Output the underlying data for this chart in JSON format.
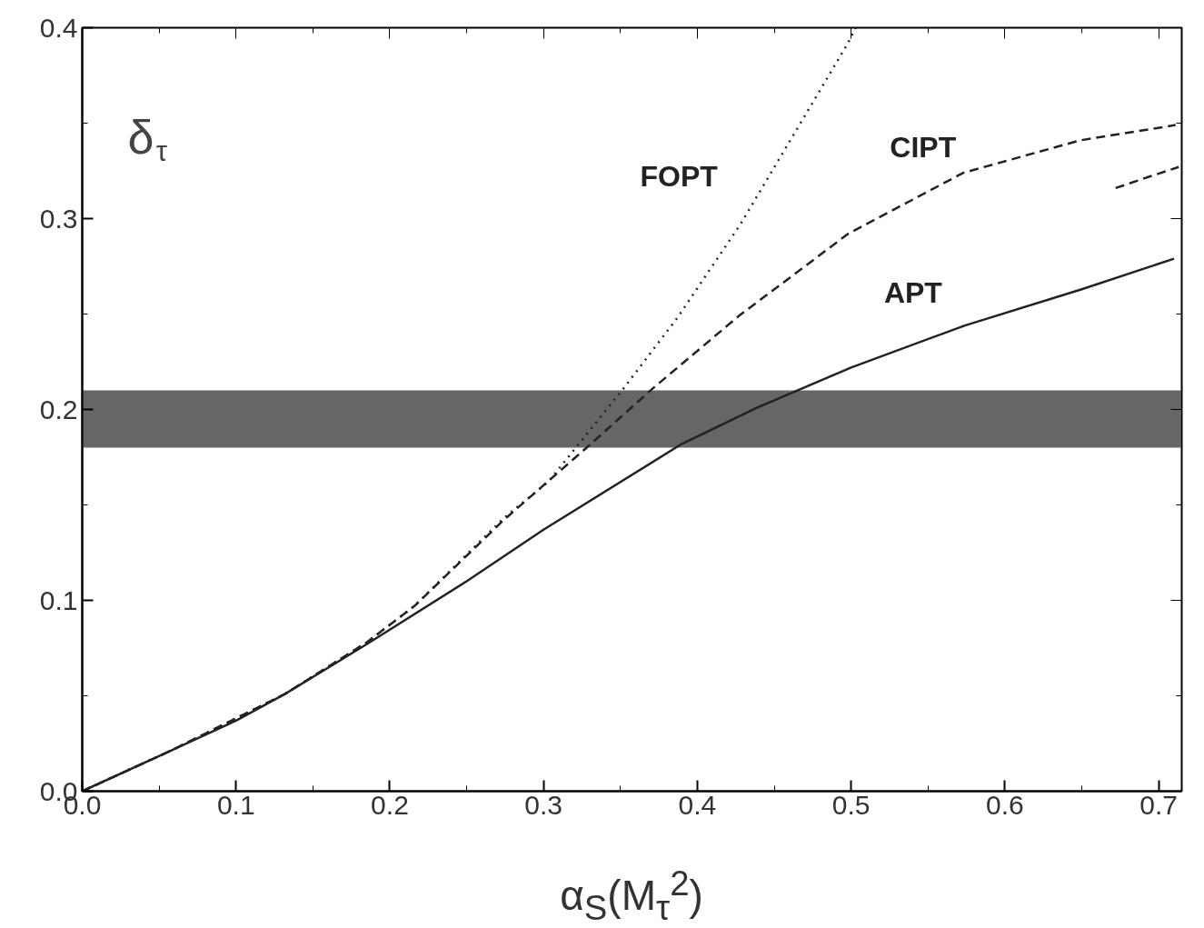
{
  "chart_data": {
    "type": "line",
    "xlabel": "α$_{S}$(M$_{τ}$$^{2}$)",
    "ylabel": "δ$_{τ}$",
    "xlim": [
      0,
      0.715
    ],
    "ylim": [
      0,
      0.4
    ],
    "xticks": [
      {
        "value": 0,
        "label": "0.0"
      },
      {
        "value": 0.1,
        "label": "0.1"
      },
      {
        "value": 0.2,
        "label": "0.2"
      },
      {
        "value": 0.3,
        "label": "0.3"
      },
      {
        "value": 0.4,
        "label": "0.4"
      },
      {
        "value": 0.5,
        "label": "0.5"
      },
      {
        "value": 0.6,
        "label": "0.6"
      },
      {
        "value": 0.7,
        "label": "0.7"
      }
    ],
    "yticks": [
      {
        "value": 0,
        "label": "0.0"
      },
      0.1,
      0.2,
      0.3,
      0.4
    ],
    "grid": false,
    "marker": "none",
    "series": [
      {
        "name": "FOPT",
        "color": "#222222",
        "line_style": "dotted",
        "x": [
          0,
          0.057,
          0.132,
          0.185,
          0.216,
          0.274,
          0.303,
          0.352,
          0.387,
          0.428,
          0.498,
          0.503
        ],
        "values": [
          0,
          0.021,
          0.051,
          0.078,
          0.097,
          0.143,
          0.162,
          0.211,
          0.248,
          0.297,
          0.392,
          0.4
        ]
      },
      {
        "name": "CIPT",
        "color": "#222222",
        "line_style": "dashed",
        "x": [
          0,
          0.057,
          0.132,
          0.185,
          0.216,
          0.274,
          0.328,
          0.371,
          0.427,
          0.498,
          0.573,
          0.649,
          0.711
        ],
        "values": [
          0,
          0.021,
          0.051,
          0.078,
          0.097,
          0.142,
          0.18,
          0.211,
          0.249,
          0.292,
          0.324,
          0.341,
          0.349
        ]
      },
      {
        "color": "#222222",
        "line_style": "dashed",
        "x": [
          0.672,
          0.694,
          0.713
        ],
        "values": [
          0.316,
          0.322,
          0.327
        ]
      },
      {
        "name": "APT",
        "color": "#222222",
        "line_style": "solid",
        "x": [
          0,
          0.057,
          0.1,
          0.132,
          0.185,
          0.25,
          0.3,
          0.39,
          0.439,
          0.5,
          0.574,
          0.65,
          0.71
        ],
        "values": [
          0,
          0.021,
          0.037,
          0.051,
          0.077,
          0.11,
          0.137,
          0.182,
          0.201,
          0.222,
          0.244,
          0.263,
          0.279
        ]
      }
    ],
    "bands": [
      {
        "axis": "y",
        "from": 0.18,
        "to": 0.21,
        "color": "#555555"
      }
    ]
  }
}
